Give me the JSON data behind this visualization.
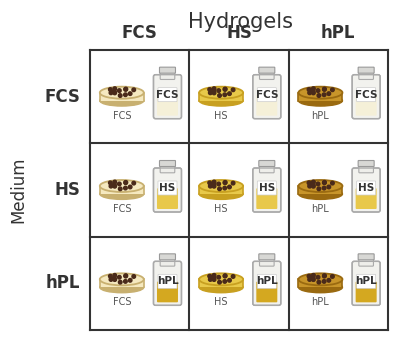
{
  "title": "Hydrogels",
  "row_label": "Medium",
  "col_labels": [
    "FCS",
    "HS",
    "hPL"
  ],
  "row_labels": [
    "FCS",
    "HS",
    "hPL"
  ],
  "dish_colors": {
    "FCS": "#f5e9c0",
    "HS": "#e8c94a",
    "hPL": "#c8952a"
  },
  "dish_edge_colors": {
    "FCS": "#c8b070",
    "HS": "#c8a020",
    "hPL": "#9a6a10"
  },
  "bottle_fill_colors": {
    "FCS": "#f5f0d8",
    "HS": "#e8c84a",
    "hPL": "#d4a820"
  },
  "dot_color": "#4a2a1a",
  "grid_color": "#333333",
  "background": "#ffffff",
  "title_fontsize": 15,
  "label_fontsize": 12,
  "cell_label_fontsize": 7
}
